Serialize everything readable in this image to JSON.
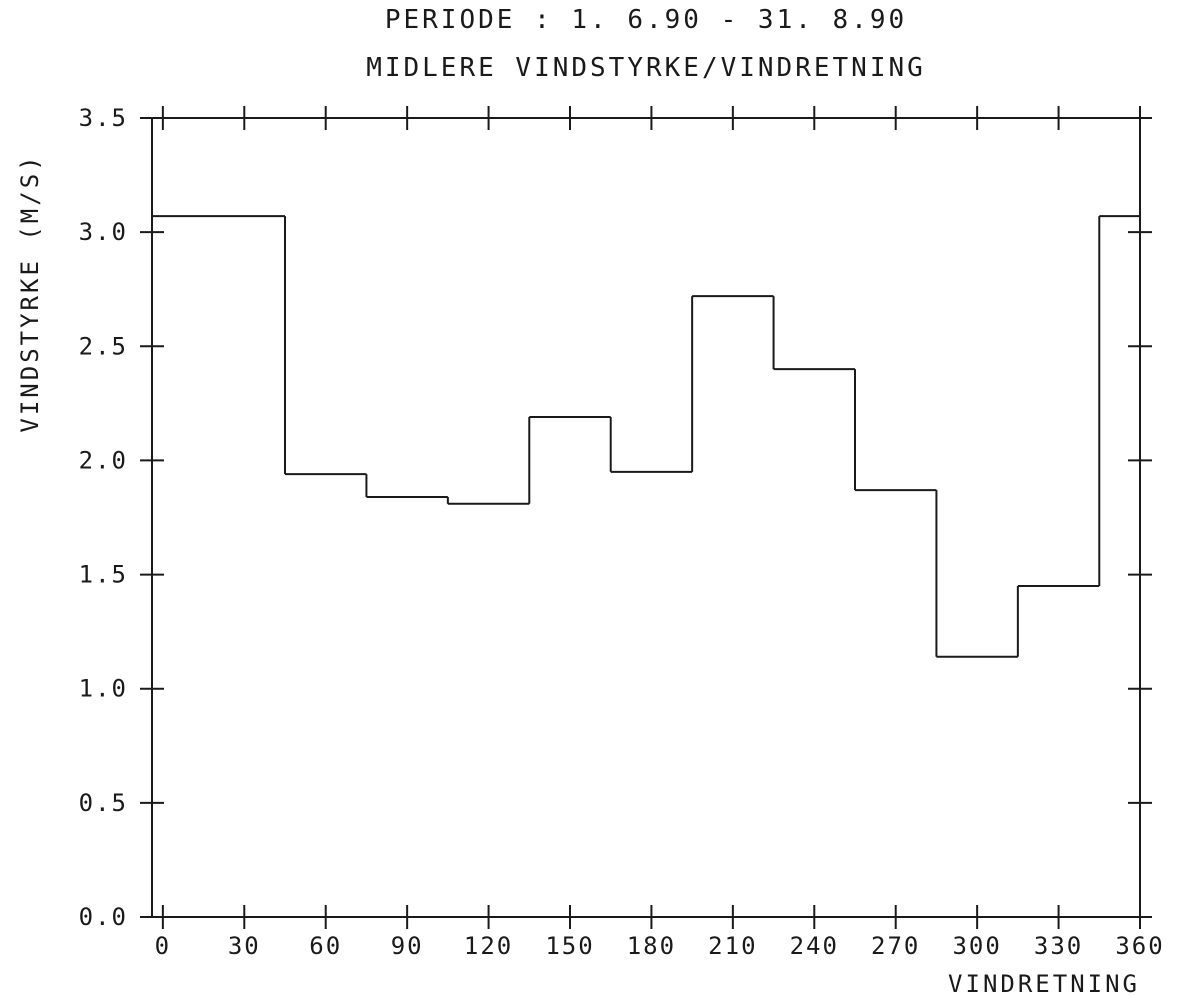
{
  "chart_data": {
    "type": "line",
    "step": true,
    "title_lines": [
      "PERIODE  :  1. 6.90 - 31. 8.90",
      "MIDLERE VINDSTYRKE/VINDRETNING"
    ],
    "xlabel": "VINDRETNING",
    "ylabel": "VINDSTYRKE (M/S)",
    "xlim": [
      -4,
      360
    ],
    "ylim": [
      0,
      3.5
    ],
    "x_ticks": [
      0,
      30,
      60,
      90,
      120,
      150,
      180,
      210,
      240,
      270,
      300,
      330,
      360
    ],
    "x_tick_labels": [
      "0",
      "30",
      "60",
      "90",
      "120",
      "150",
      "180",
      "210",
      "240",
      "270",
      "300",
      "330",
      "360"
    ],
    "y_ticks": [
      0,
      0.5,
      1.0,
      1.5,
      2.0,
      2.5,
      3.0,
      3.5
    ],
    "y_tick_labels": [
      "0.0",
      "0.5",
      "1.0",
      "1.5",
      "2.0",
      "2.5",
      "3.0",
      "3.5"
    ],
    "series": [
      {
        "bin_edges": [
          -4,
          45,
          75,
          105,
          135,
          165,
          195,
          225,
          255,
          285,
          315,
          345,
          360
        ],
        "values": [
          3.07,
          1.94,
          1.84,
          1.81,
          2.19,
          1.95,
          2.72,
          2.4,
          1.87,
          1.14,
          1.45,
          3.07
        ]
      }
    ],
    "grid": false,
    "color": "#1a1a1a"
  }
}
